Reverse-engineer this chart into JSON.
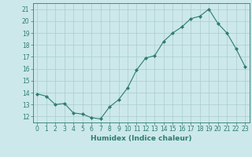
{
  "x": [
    0,
    1,
    2,
    3,
    4,
    5,
    6,
    7,
    8,
    9,
    10,
    11,
    12,
    13,
    14,
    15,
    16,
    17,
    18,
    19,
    20,
    21,
    22,
    23
  ],
  "y": [
    13.9,
    13.7,
    13.0,
    13.1,
    12.3,
    12.2,
    11.9,
    11.8,
    12.8,
    13.4,
    14.4,
    15.9,
    16.9,
    17.1,
    18.3,
    19.0,
    19.5,
    20.2,
    20.4,
    21.0,
    19.8,
    19.0,
    17.7,
    16.2
  ],
  "xlabel": "Humidex (Indice chaleur)",
  "xlim": [
    -0.5,
    23.5
  ],
  "ylim": [
    11.5,
    21.5
  ],
  "yticks": [
    12,
    13,
    14,
    15,
    16,
    17,
    18,
    19,
    20,
    21
  ],
  "xticks": [
    0,
    1,
    2,
    3,
    4,
    5,
    6,
    7,
    8,
    9,
    10,
    11,
    12,
    13,
    14,
    15,
    16,
    17,
    18,
    19,
    20,
    21,
    22,
    23
  ],
  "line_color": "#2e7d6e",
  "marker": "D",
  "marker_size": 2,
  "bg_color": "#cce8ea",
  "grid_color": "#aaccce",
  "label_fontsize": 6.5,
  "tick_fontsize": 5.5
}
